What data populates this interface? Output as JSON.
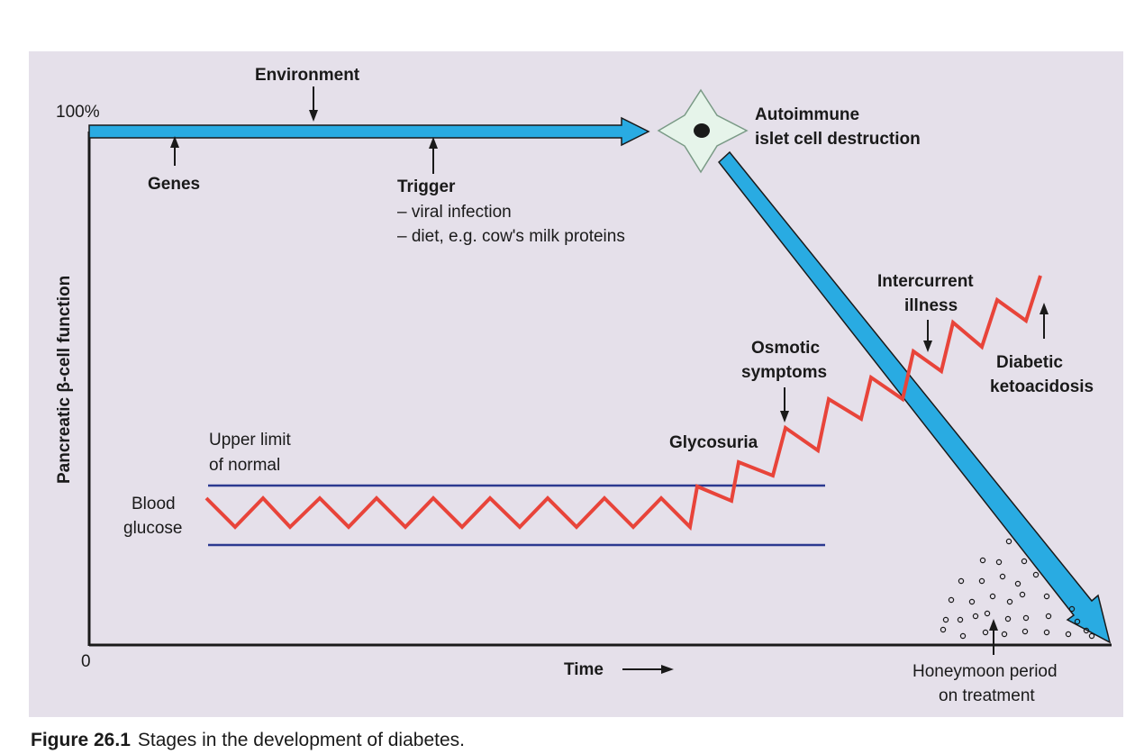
{
  "axes": {
    "y_label": "Pancreatic β-cell function",
    "y_top": "100%",
    "origin": "0",
    "x_label": "Time"
  },
  "labels": {
    "environment": "Environment",
    "genes": "Genes",
    "trigger_title": "Trigger",
    "trigger_1": "– viral infection",
    "trigger_2": "– diet, e.g. cow's milk proteins",
    "autoimmune_1": "Autoimmune",
    "autoimmune_2": "islet  cell destruction",
    "upper_limit_1": "Upper limit",
    "upper_limit_2": "of normal",
    "blood_1": "Blood",
    "blood_2": "glucose",
    "glycosuria": "Glycosuria",
    "osmotic_1": "Osmotic",
    "osmotic_2": "symptoms",
    "intercurrent_1": "Intercurrent",
    "intercurrent_2": "illness",
    "diabetic_1": "Diabetic",
    "diabetic_2": "ketoacidosis",
    "honeymoon_1": "Honeymoon period",
    "honeymoon_2": "on treatment"
  },
  "caption": {
    "number": "Figure  26.1",
    "text": "Stages in the development of diabetes."
  },
  "colors": {
    "panel_bg": "#e5e0ea",
    "arrow_fill": "#29abe2",
    "zigzag": "#e8443a",
    "limit_lines": "#2b3990",
    "cell_fill": "#e6f4ea",
    "cell_stroke": "#7a9a86"
  }
}
